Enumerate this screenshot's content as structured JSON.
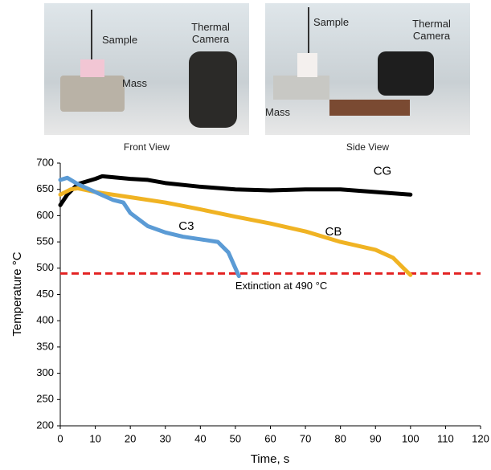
{
  "photos": [
    {
      "caption": "Front View",
      "labels": [
        "Sample",
        "Mass",
        "Thermal Camera"
      ]
    },
    {
      "caption": "Side View",
      "labels": [
        "Sample",
        "Mass",
        "Thermal Camera"
      ]
    }
  ],
  "chart_data": {
    "type": "line",
    "x_label": "Time, s",
    "y_label": "Temperature °C",
    "xlim": [
      0,
      120
    ],
    "xticks": [
      0,
      10,
      20,
      30,
      40,
      50,
      60,
      70,
      80,
      90,
      100,
      110,
      120
    ],
    "ylim": [
      200,
      700
    ],
    "yticks": [
      200,
      250,
      300,
      350,
      400,
      450,
      500,
      550,
      600,
      650,
      700
    ],
    "series": [
      {
        "name": "CG",
        "color": "#000000",
        "x": [
          0,
          2,
          5,
          10,
          12,
          20,
          25,
          30,
          40,
          50,
          60,
          70,
          80,
          90,
          100
        ],
        "values": [
          620,
          640,
          660,
          670,
          675,
          670,
          668,
          662,
          655,
          650,
          648,
          650,
          650,
          645,
          640
        ]
      },
      {
        "name": "CB",
        "color": "#f0b323",
        "x": [
          0,
          3,
          5,
          10,
          20,
          30,
          40,
          50,
          60,
          70,
          80,
          90,
          95,
          98,
          100
        ],
        "values": [
          640,
          650,
          652,
          645,
          635,
          625,
          612,
          598,
          585,
          570,
          550,
          535,
          520,
          500,
          487
        ]
      },
      {
        "name": "C3",
        "color": "#5b9bd5",
        "x": [
          0,
          2,
          5,
          10,
          15,
          18,
          20,
          25,
          30,
          35,
          40,
          45,
          48,
          50,
          51
        ],
        "values": [
          668,
          672,
          660,
          645,
          630,
          625,
          605,
          580,
          568,
          560,
          555,
          550,
          530,
          500,
          485
        ]
      }
    ],
    "reference_line": {
      "value": 490,
      "label": "Extinction at 490 °C",
      "color": "#e32222"
    }
  }
}
